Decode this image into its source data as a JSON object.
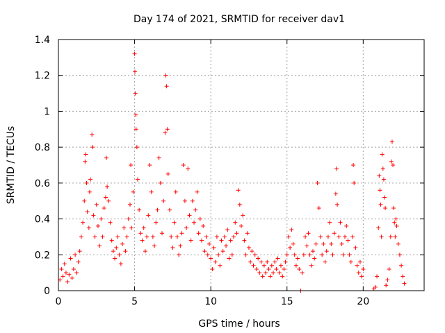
{
  "chart_data": {
    "type": "scatter",
    "title": "Day 174 of 2021, SRMTID for receiver dav1",
    "xlabel": "GPS time / hours",
    "ylabel": "SRMTID / TECUs",
    "xlim": [
      0,
      24
    ],
    "ylim": [
      0,
      1.4
    ],
    "xticks": [
      0,
      5,
      10,
      15,
      20
    ],
    "xtick_labels": [
      "0",
      "5",
      "10",
      "15",
      "20"
    ],
    "yticks": [
      0,
      0.2,
      0.4,
      0.6,
      0.8,
      1,
      1.2,
      1.4
    ],
    "ytick_labels": [
      "0",
      "0.2",
      "0.4",
      "0.6",
      "0.8",
      "1",
      "1.2",
      "1.4"
    ],
    "grid": true,
    "marker": "plus",
    "series": [
      {
        "name": "dav1",
        "color": "#ff0000",
        "points": [
          [
            0.1,
            0.06
          ],
          [
            0.2,
            0.12
          ],
          [
            0.3,
            0.08
          ],
          [
            0.4,
            0.15
          ],
          [
            0.5,
            0.1
          ],
          [
            0.6,
            0.05
          ],
          [
            0.7,
            0.09
          ],
          [
            0.8,
            0.18
          ],
          [
            0.9,
            0.07
          ],
          [
            1.0,
            0.12
          ],
          [
            1.1,
            0.2
          ],
          [
            1.2,
            0.1
          ],
          [
            1.3,
            0.16
          ],
          [
            1.4,
            0.22
          ],
          [
            1.5,
            0.3
          ],
          [
            1.6,
            0.38
          ],
          [
            1.7,
            0.5
          ],
          [
            1.75,
            0.72
          ],
          [
            1.8,
            0.76
          ],
          [
            1.85,
            0.6
          ],
          [
            1.9,
            0.44
          ],
          [
            2.0,
            0.35
          ],
          [
            2.05,
            0.55
          ],
          [
            2.1,
            0.62
          ],
          [
            2.2,
            0.87
          ],
          [
            2.25,
            0.8
          ],
          [
            2.3,
            0.42
          ],
          [
            2.4,
            0.3
          ],
          [
            2.5,
            0.48
          ],
          [
            2.6,
            0.36
          ],
          [
            2.7,
            0.25
          ],
          [
            2.8,
            0.4
          ],
          [
            2.9,
            0.3
          ],
          [
            3.0,
            0.46
          ],
          [
            3.1,
            0.52
          ],
          [
            3.15,
            0.74
          ],
          [
            3.2,
            0.58
          ],
          [
            3.3,
            0.5
          ],
          [
            3.4,
            0.38
          ],
          [
            3.5,
            0.28
          ],
          [
            3.6,
            0.22
          ],
          [
            3.7,
            0.18
          ],
          [
            3.8,
            0.24
          ],
          [
            3.9,
            0.3
          ],
          [
            4.0,
            0.2
          ],
          [
            4.1,
            0.15
          ],
          [
            4.2,
            0.26
          ],
          [
            4.3,
            0.35
          ],
          [
            4.4,
            0.22
          ],
          [
            4.5,
            0.3
          ],
          [
            4.6,
            0.4
          ],
          [
            4.7,
            0.48
          ],
          [
            4.75,
            0.7
          ],
          [
            4.8,
            0.35
          ],
          [
            4.9,
            0.55
          ],
          [
            5.0,
            1.32
          ],
          [
            5.02,
            1.22
          ],
          [
            5.05,
            1.1
          ],
          [
            5.08,
            0.98
          ],
          [
            5.1,
            0.9
          ],
          [
            5.15,
            0.8
          ],
          [
            5.2,
            0.62
          ],
          [
            5.3,
            0.45
          ],
          [
            5.4,
            0.32
          ],
          [
            5.5,
            0.28
          ],
          [
            5.6,
            0.35
          ],
          [
            5.7,
            0.22
          ],
          [
            5.8,
            0.3
          ],
          [
            5.9,
            0.42
          ],
          [
            6.0,
            0.7
          ],
          [
            6.1,
            0.55
          ],
          [
            6.2,
            0.3
          ],
          [
            6.3,
            0.25
          ],
          [
            6.4,
            0.38
          ],
          [
            6.5,
            0.45
          ],
          [
            6.6,
            0.74
          ],
          [
            6.7,
            0.6
          ],
          [
            6.8,
            0.32
          ],
          [
            6.9,
            0.5
          ],
          [
            7.0,
            0.88
          ],
          [
            7.05,
            1.2
          ],
          [
            7.1,
            1.14
          ],
          [
            7.15,
            0.9
          ],
          [
            7.2,
            0.65
          ],
          [
            7.3,
            0.45
          ],
          [
            7.4,
            0.3
          ],
          [
            7.5,
            0.24
          ],
          [
            7.6,
            0.38
          ],
          [
            7.7,
            0.55
          ],
          [
            7.8,
            0.3
          ],
          [
            7.9,
            0.2
          ],
          [
            8.0,
            0.25
          ],
          [
            8.1,
            0.32
          ],
          [
            8.2,
            0.7
          ],
          [
            8.3,
            0.5
          ],
          [
            8.4,
            0.35
          ],
          [
            8.5,
            0.68
          ],
          [
            8.6,
            0.42
          ],
          [
            8.7,
            0.28
          ],
          [
            8.8,
            0.5
          ],
          [
            8.9,
            0.38
          ],
          [
            9.0,
            0.45
          ],
          [
            9.1,
            0.55
          ],
          [
            9.2,
            0.32
          ],
          [
            9.3,
            0.4
          ],
          [
            9.4,
            0.28
          ],
          [
            9.5,
            0.36
          ],
          [
            9.6,
            0.22
          ],
          [
            9.7,
            0.3
          ],
          [
            9.8,
            0.2
          ],
          [
            9.9,
            0.26
          ],
          [
            10.0,
            0.18
          ],
          [
            10.1,
            0.12
          ],
          [
            10.2,
            0.24
          ],
          [
            10.3,
            0.16
          ],
          [
            10.4,
            0.3
          ],
          [
            10.5,
            0.2
          ],
          [
            10.6,
            0.14
          ],
          [
            10.7,
            0.28
          ],
          [
            10.8,
            0.22
          ],
          [
            10.9,
            0.3
          ],
          [
            11.0,
            0.25
          ],
          [
            11.1,
            0.34
          ],
          [
            11.2,
            0.18
          ],
          [
            11.3,
            0.28
          ],
          [
            11.4,
            0.2
          ],
          [
            11.5,
            0.3
          ],
          [
            11.6,
            0.38
          ],
          [
            11.7,
            0.32
          ],
          [
            11.8,
            0.56
          ],
          [
            11.9,
            0.48
          ],
          [
            12.0,
            0.36
          ],
          [
            12.1,
            0.42
          ],
          [
            12.2,
            0.28
          ],
          [
            12.3,
            0.2
          ],
          [
            12.4,
            0.32
          ],
          [
            12.5,
            0.24
          ],
          [
            12.6,
            0.16
          ],
          [
            12.7,
            0.22
          ],
          [
            12.8,
            0.14
          ],
          [
            12.9,
            0.2
          ],
          [
            13.0,
            0.12
          ],
          [
            13.1,
            0.18
          ],
          [
            13.2,
            0.1
          ],
          [
            13.3,
            0.16
          ],
          [
            13.4,
            0.08
          ],
          [
            13.5,
            0.14
          ],
          [
            13.6,
            0.1
          ],
          [
            13.7,
            0.16
          ],
          [
            13.8,
            0.12
          ],
          [
            13.9,
            0.08
          ],
          [
            14.0,
            0.14
          ],
          [
            14.1,
            0.1
          ],
          [
            14.2,
            0.16
          ],
          [
            14.3,
            0.12
          ],
          [
            14.4,
            0.18
          ],
          [
            14.5,
            0.1
          ],
          [
            14.6,
            0.14
          ],
          [
            14.7,
            0.08
          ],
          [
            14.8,
            0.12
          ],
          [
            14.9,
            0.16
          ],
          [
            15.0,
            0.2
          ],
          [
            15.1,
            0.3
          ],
          [
            15.2,
            0.24
          ],
          [
            15.3,
            0.34
          ],
          [
            15.4,
            0.26
          ],
          [
            15.5,
            0.2
          ],
          [
            15.6,
            0.14
          ],
          [
            15.7,
            0.18
          ],
          [
            15.8,
            0.12
          ],
          [
            15.9,
            0.0
          ],
          [
            16.0,
            0.1
          ],
          [
            16.1,
            0.2
          ],
          [
            16.2,
            0.3
          ],
          [
            16.3,
            0.25
          ],
          [
            16.4,
            0.32
          ],
          [
            16.5,
            0.2
          ],
          [
            16.6,
            0.14
          ],
          [
            16.7,
            0.22
          ],
          [
            16.8,
            0.18
          ],
          [
            16.9,
            0.26
          ],
          [
            17.0,
            0.6
          ],
          [
            17.1,
            0.46
          ],
          [
            17.2,
            0.3
          ],
          [
            17.3,
            0.2
          ],
          [
            17.4,
            0.26
          ],
          [
            17.5,
            0.16
          ],
          [
            17.6,
            0.22
          ],
          [
            17.7,
            0.3
          ],
          [
            17.8,
            0.38
          ],
          [
            17.9,
            0.26
          ],
          [
            18.0,
            0.2
          ],
          [
            18.1,
            0.32
          ],
          [
            18.2,
            0.54
          ],
          [
            18.25,
            0.68
          ],
          [
            18.3,
            0.48
          ],
          [
            18.4,
            0.3
          ],
          [
            18.5,
            0.38
          ],
          [
            18.6,
            0.26
          ],
          [
            18.7,
            0.2
          ],
          [
            18.8,
            0.3
          ],
          [
            18.9,
            0.36
          ],
          [
            19.0,
            0.28
          ],
          [
            19.1,
            0.2
          ],
          [
            19.2,
            0.16
          ],
          [
            19.3,
            0.3
          ],
          [
            19.35,
            0.7
          ],
          [
            19.4,
            0.6
          ],
          [
            19.5,
            0.24
          ],
          [
            19.6,
            0.14
          ],
          [
            19.7,
            0.1
          ],
          [
            19.8,
            0.16
          ],
          [
            19.9,
            0.08
          ],
          [
            20.0,
            0.12
          ],
          [
            20.7,
            0.01
          ],
          [
            20.8,
            0.02
          ],
          [
            20.9,
            0.08
          ],
          [
            21.0,
            0.35
          ],
          [
            21.05,
            0.64
          ],
          [
            21.1,
            0.56
          ],
          [
            21.15,
            0.48
          ],
          [
            21.2,
            0.3
          ],
          [
            21.25,
            0.76
          ],
          [
            21.3,
            0.68
          ],
          [
            21.35,
            0.62
          ],
          [
            21.4,
            0.52
          ],
          [
            21.45,
            0.46
          ],
          [
            21.5,
            0.03
          ],
          [
            21.6,
            0.06
          ],
          [
            21.7,
            0.12
          ],
          [
            21.8,
            0.3
          ],
          [
            21.85,
            0.72
          ],
          [
            21.9,
            0.83
          ],
          [
            21.95,
            0.7
          ],
          [
            22.0,
            0.46
          ],
          [
            22.05,
            0.38
          ],
          [
            22.1,
            0.3
          ],
          [
            22.15,
            0.4
          ],
          [
            22.2,
            0.36
          ],
          [
            22.3,
            0.26
          ],
          [
            22.4,
            0.2
          ],
          [
            22.5,
            0.14
          ],
          [
            22.6,
            0.08
          ],
          [
            22.7,
            0.04
          ]
        ]
      }
    ]
  }
}
